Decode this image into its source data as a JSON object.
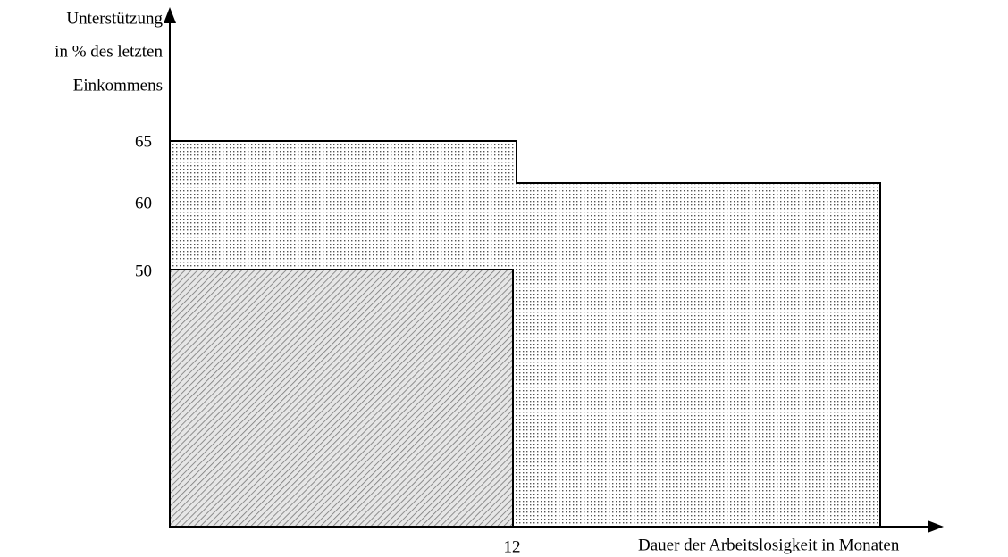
{
  "y_axis": {
    "label_lines": [
      "Unterstützung",
      "in % des letzten",
      "Einkommens"
    ],
    "ticks": [
      "65",
      "60",
      "50"
    ]
  },
  "x_axis": {
    "label": "Dauer der Arbeitslosigkeit in Monaten",
    "ticks": [
      "12"
    ]
  }
}
